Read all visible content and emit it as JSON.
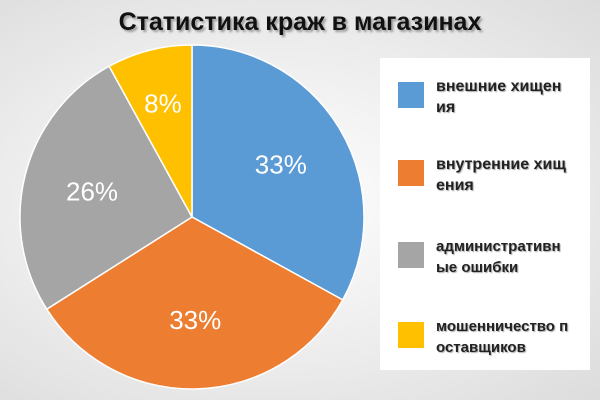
{
  "chart_data": {
    "type": "pie",
    "title": "Статистика краж в магазинах",
    "categories": [
      "внешние хищения",
      "внутренние хищения",
      "административные ошибки",
      "мошенничество поставщиков"
    ],
    "values": [
      33,
      33,
      26,
      8
    ],
    "value_labels": [
      "33%",
      "33%",
      "26%",
      "8%"
    ],
    "colors": [
      "#5b9bd5",
      "#ed7d31",
      "#a5a5a5",
      "#ffc000"
    ]
  }
}
